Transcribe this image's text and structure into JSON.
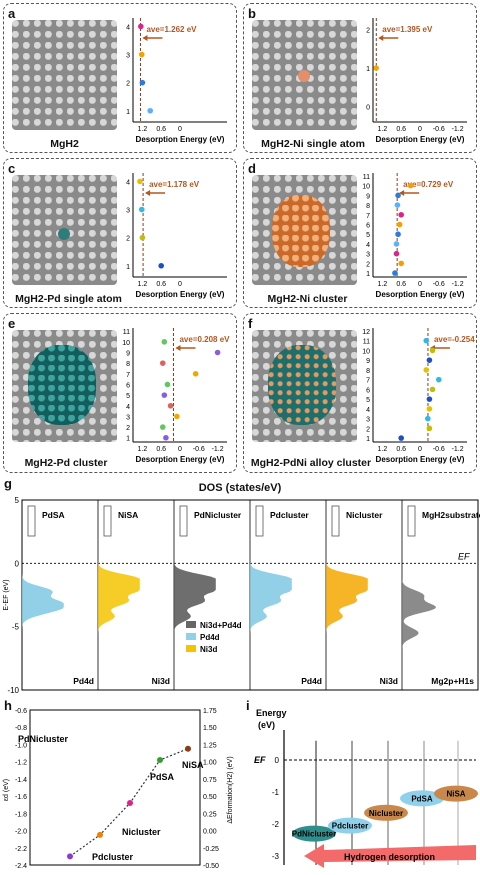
{
  "panels": [
    {
      "letter": "a",
      "caption": "MgH2",
      "ave_label": "ave=1.262 eV",
      "xlabel": "Desorption Energy (eV)",
      "xticks": [
        "1.2",
        "0.6",
        "0"
      ],
      "yticks": [
        "1",
        "2",
        "3",
        "4"
      ]
    },
    {
      "letter": "b",
      "caption": "MgH2-Ni single atom",
      "ave_label": "ave=1.395 eV",
      "xlabel": "Desorption Energy (eV)",
      "xticks": [
        "1.2",
        "0.6",
        "0",
        "-0.6",
        "-1.2"
      ],
      "yticks": [
        "0",
        "1",
        "2"
      ]
    },
    {
      "letter": "c",
      "caption": "MgH2-Pd single atom",
      "ave_label": "ave=1.178 eV",
      "xlabel": "Desorption Energy (eV)",
      "xticks": [
        "1.2",
        "0.6",
        "0"
      ],
      "yticks": [
        "1",
        "2",
        "3",
        "4"
      ]
    },
    {
      "letter": "d",
      "caption": "MgH2-Ni cluster",
      "ave_label": "ave=0.729 eV",
      "xlabel": "Desorption Energy (eV)",
      "xticks": [
        "1.2",
        "0.6",
        "0",
        "-0.6",
        "-1.2"
      ],
      "yticks": [
        "1",
        "2",
        "3",
        "4",
        "5",
        "6",
        "7",
        "8",
        "9",
        "10",
        "11"
      ]
    },
    {
      "letter": "e",
      "caption": "MgH2-Pd cluster",
      "ave_label": "ave=0.208 eV",
      "xlabel": "Desorption Energy (eV)",
      "xticks": [
        "1.2",
        "0.6",
        "0",
        "-0.6",
        "-1.2"
      ],
      "yticks": [
        "1",
        "2",
        "3",
        "4",
        "5",
        "6",
        "7",
        "8",
        "9",
        "10",
        "11"
      ]
    },
    {
      "letter": "f",
      "caption": "MgH2-PdNi alloy cluster",
      "ave_label": "ave=-0.254 eV",
      "xlabel": "Desorption Energy (eV)",
      "xticks": [
        "1.2",
        "0.6",
        "0",
        "-0.6",
        "-1.2"
      ],
      "yticks": [
        "1",
        "2",
        "3",
        "4",
        "5",
        "6",
        "7",
        "8",
        "9",
        "10",
        "11",
        "12"
      ]
    }
  ],
  "dos": {
    "letter": "g",
    "title": "DOS (states/eV)",
    "yticks": [
      "5",
      "0",
      "-5",
      "-10"
    ],
    "ylabel": "E-EF (eV)",
    "ef_label": "EF",
    "columns": [
      {
        "name": "PdSA",
        "bottom": "Pd4d",
        "color": "#7ec8e3"
      },
      {
        "name": "NiSA",
        "bottom": "Ni3d",
        "color": "#f5c400"
      },
      {
        "name": "PdNicluster",
        "bottom": "",
        "color": "#555555"
      },
      {
        "name": "Pdcluster",
        "bottom": "Pd4d",
        "color": "#7ec8e3"
      },
      {
        "name": "Nicluster",
        "bottom": "Ni3d",
        "color": "#f5a800"
      },
      {
        "name": "MgH2substrate",
        "bottom": "Mg2p+H1s",
        "color": "#777777"
      }
    ],
    "legend": [
      "Ni3d+Pd4d",
      "Pd4d",
      "Ni3d"
    ],
    "legend_colors": [
      "#666666",
      "#8fd0ea",
      "#f5c400"
    ]
  },
  "panel_h": {
    "letter": "h",
    "yleft_ticks": [
      "-0.6",
      "-0.8",
      "-1.0",
      "-1.2",
      "-1.4",
      "-1.6",
      "-1.8",
      "-2.0",
      "-2.2",
      "-2.4"
    ],
    "yright_ticks": [
      "1.75",
      "1.50",
      "1.25",
      "1.00",
      "0.75",
      "0.50",
      "0.25",
      "0.00",
      "-0.25",
      "-0.50"
    ],
    "labels": [
      "PdNicluster",
      "Pdcluster",
      "Nicluster",
      "PdSA",
      "NiSA"
    ]
  },
  "panel_i": {
    "letter": "i",
    "ylabel_1": "Energy",
    "ylabel_2": "(eV)",
    "ef_label": "EF",
    "yticks": [
      "0",
      "-1",
      "-2",
      "-3"
    ],
    "bands": [
      "PdNicluster",
      "Pdcluster",
      "Nicluster",
      "PdSA",
      "NiSA"
    ],
    "arrow_label": "Hydrogen desorption"
  },
  "chart_data": [
    {
      "type": "scatter",
      "panel": "a",
      "xlabel": "Desorption Energy (eV)",
      "average": 1.262,
      "x": [
        1.25,
        1.22,
        1.2,
        0.95
      ],
      "y": [
        4,
        3,
        2,
        1
      ]
    },
    {
      "type": "scatter",
      "panel": "b",
      "xlabel": "Desorption Energy (eV)",
      "average": 1.395,
      "x": [
        1.4
      ],
      "y": [
        1
      ]
    },
    {
      "type": "scatter",
      "panel": "c",
      "xlabel": "Desorption Energy (eV)",
      "average": 1.178,
      "x": [
        1.28,
        1.22,
        1.2,
        0.6
      ],
      "y": [
        4,
        3,
        2,
        1
      ]
    },
    {
      "type": "scatter",
      "panel": "d",
      "xlabel": "Desorption Energy (eV)",
      "average": 0.729,
      "x": [
        0.3,
        0.7,
        0.72,
        0.6,
        0.65,
        0.7,
        0.75,
        0.75,
        0.6,
        0.8
      ],
      "y": [
        10,
        9,
        8,
        7,
        6,
        5,
        4,
        3,
        2,
        1
      ]
    },
    {
      "type": "scatter",
      "panel": "e",
      "xlabel": "Desorption Energy (eV)",
      "average": 0.208,
      "x": [
        0.5,
        -1.2,
        0.55,
        -0.5,
        0.4,
        0.5,
        0.3,
        0.1,
        0.55,
        0.45
      ],
      "y": [
        10,
        9,
        8,
        7,
        6,
        5,
        4,
        3,
        2,
        1
      ]
    },
    {
      "type": "scatter",
      "panel": "f",
      "xlabel": "Desorption Energy (eV)",
      "average": -0.254,
      "x": [
        -0.2,
        -0.4,
        -0.3,
        -0.2,
        -0.6,
        -0.4,
        -0.3,
        -0.3,
        -0.25,
        -0.3,
        0.6
      ],
      "y": [
        11,
        10,
        9,
        8,
        7,
        6,
        5,
        4,
        3,
        2,
        1
      ]
    },
    {
      "type": "line",
      "panel": "h",
      "categories": [
        "PdNicluster",
        "Pdcluster",
        "Nicluster",
        "PdSA",
        "NiSA"
      ],
      "series": [
        {
          "values": [
            -2.3,
            -2.05,
            -1.68,
            -1.18,
            -1.05
          ]
        }
      ],
      "ylim": [
        -2.4,
        -0.6
      ]
    }
  ]
}
